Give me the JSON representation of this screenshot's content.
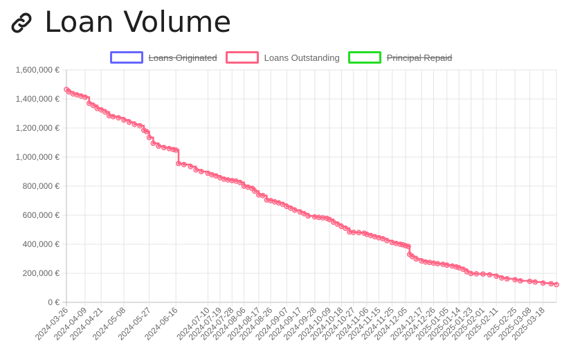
{
  "page": {
    "title": "Loan Volume",
    "title_icon": "link-icon"
  },
  "legend": {
    "items": [
      {
        "label": "Loans Originated",
        "color": "#6666ff",
        "hidden": true
      },
      {
        "label": "Loans Outstanding",
        "color": "#ff6384",
        "hidden": false
      },
      {
        "label": "Principal Repaid",
        "color": "#22dd22",
        "hidden": true
      }
    ]
  },
  "chart_data": {
    "type": "line",
    "y_ticks": [
      "0 €",
      "200,000 €",
      "400,000 €",
      "600,000 €",
      "800,000 €",
      "1,000,000 €",
      "1,200,000 €",
      "1,400,000 €",
      "1,600,000 €"
    ],
    "ylim": [
      0,
      1600000
    ],
    "x_tick_labels": [
      "2024-03-26",
      "2024-04-09",
      "2024-04-21",
      "2024-05-08",
      "2024-05-27",
      "2024-06-16",
      "2024-07-10",
      "2024-07-19",
      "2024-07-28",
      "2024-08-06",
      "2024-08-17",
      "2024-08-26",
      "2024-09-07",
      "2024-09-17",
      "2024-09-28",
      "2024-10-09",
      "2024-10-18",
      "2024-10-27",
      "2024-11-06",
      "2024-11-15",
      "2024-11-25",
      "2024-12-05",
      "2024-12-17",
      "2024-12-26",
      "2025-01-05",
      "2025-01-14",
      "2025-01-23",
      "2025-02-01",
      "2025-02-11",
      "2025-02-25",
      "2025-03-08",
      "2025-03-18"
    ],
    "grid": true,
    "legend_position": "top-center",
    "series": [
      {
        "name": "Loans Outstanding",
        "color": "#ff6384",
        "points": [
          [
            "2024-03-26",
            1465000
          ],
          [
            "2024-03-28",
            1448000
          ],
          [
            "2024-03-31",
            1435000
          ],
          [
            "2024-04-03",
            1428000
          ],
          [
            "2024-04-06",
            1420000
          ],
          [
            "2024-04-09",
            1412000
          ],
          [
            "2024-04-12",
            1370000
          ],
          [
            "2024-04-15",
            1355000
          ],
          [
            "2024-04-18",
            1335000
          ],
          [
            "2024-04-21",
            1325000
          ],
          [
            "2024-04-24",
            1310000
          ],
          [
            "2024-04-27",
            1285000
          ],
          [
            "2024-04-30",
            1278000
          ],
          [
            "2024-05-04",
            1270000
          ],
          [
            "2024-05-08",
            1255000
          ],
          [
            "2024-05-12",
            1240000
          ],
          [
            "2024-05-16",
            1225000
          ],
          [
            "2024-05-20",
            1215000
          ],
          [
            "2024-05-23",
            1185000
          ],
          [
            "2024-05-25",
            1175000
          ],
          [
            "2024-05-27",
            1135000
          ],
          [
            "2024-05-30",
            1095000
          ],
          [
            "2024-06-03",
            1075000
          ],
          [
            "2024-06-07",
            1065000
          ],
          [
            "2024-06-11",
            1058000
          ],
          [
            "2024-06-14",
            1052000
          ],
          [
            "2024-06-16",
            1048000
          ],
          [
            "2024-06-18",
            955000
          ],
          [
            "2024-06-22",
            948000
          ],
          [
            "2024-06-27",
            935000
          ],
          [
            "2024-07-01",
            912000
          ],
          [
            "2024-07-05",
            900000
          ],
          [
            "2024-07-10",
            888000
          ],
          [
            "2024-07-13",
            878000
          ],
          [
            "2024-07-16",
            870000
          ],
          [
            "2024-07-19",
            858000
          ],
          [
            "2024-07-22",
            848000
          ],
          [
            "2024-07-25",
            843000
          ],
          [
            "2024-07-28",
            838000
          ],
          [
            "2024-07-31",
            835000
          ],
          [
            "2024-08-03",
            825000
          ],
          [
            "2024-08-06",
            800000
          ],
          [
            "2024-08-09",
            793000
          ],
          [
            "2024-08-12",
            785000
          ],
          [
            "2024-08-14",
            765000
          ],
          [
            "2024-08-17",
            740000
          ],
          [
            "2024-08-20",
            735000
          ],
          [
            "2024-08-23",
            705000
          ],
          [
            "2024-08-26",
            700000
          ],
          [
            "2024-08-29",
            692000
          ],
          [
            "2024-09-01",
            685000
          ],
          [
            "2024-09-04",
            675000
          ],
          [
            "2024-09-07",
            660000
          ],
          [
            "2024-09-10",
            648000
          ],
          [
            "2024-09-13",
            635000
          ],
          [
            "2024-09-17",
            622000
          ],
          [
            "2024-09-20",
            610000
          ],
          [
            "2024-09-23",
            595000
          ],
          [
            "2024-09-28",
            588000
          ],
          [
            "2024-10-01",
            585000
          ],
          [
            "2024-10-04",
            582000
          ],
          [
            "2024-10-07",
            578000
          ],
          [
            "2024-10-09",
            570000
          ],
          [
            "2024-10-12",
            552000
          ],
          [
            "2024-10-15",
            538000
          ],
          [
            "2024-10-18",
            522000
          ],
          [
            "2024-10-21",
            510000
          ],
          [
            "2024-10-24",
            485000
          ],
          [
            "2024-10-27",
            482000
          ],
          [
            "2024-10-31",
            480000
          ],
          [
            "2024-11-04",
            476000
          ],
          [
            "2024-11-06",
            468000
          ],
          [
            "2024-11-09",
            460000
          ],
          [
            "2024-11-12",
            452000
          ],
          [
            "2024-11-15",
            445000
          ],
          [
            "2024-11-18",
            438000
          ],
          [
            "2024-11-21",
            425000
          ],
          [
            "2024-11-25",
            412000
          ],
          [
            "2024-11-28",
            405000
          ],
          [
            "2024-12-01",
            400000
          ],
          [
            "2024-12-03",
            396000
          ],
          [
            "2024-12-05",
            390000
          ],
          [
            "2024-12-07",
            385000
          ],
          [
            "2024-12-08",
            330000
          ],
          [
            "2024-12-10",
            315000
          ],
          [
            "2024-12-13",
            298000
          ],
          [
            "2024-12-17",
            285000
          ],
          [
            "2024-12-20",
            278000
          ],
          [
            "2024-12-23",
            275000
          ],
          [
            "2024-12-26",
            270000
          ],
          [
            "2024-12-29",
            266000
          ],
          [
            "2025-01-02",
            262000
          ],
          [
            "2025-01-05",
            256000
          ],
          [
            "2025-01-09",
            250000
          ],
          [
            "2025-01-12",
            244000
          ],
          [
            "2025-01-14",
            238000
          ],
          [
            "2025-01-17",
            228000
          ],
          [
            "2025-01-20",
            210000
          ],
          [
            "2025-01-23",
            198000
          ],
          [
            "2025-01-27",
            196000
          ],
          [
            "2025-02-01",
            195000
          ],
          [
            "2025-02-06",
            190000
          ],
          [
            "2025-02-11",
            180000
          ],
          [
            "2025-02-15",
            168000
          ],
          [
            "2025-02-19",
            162000
          ],
          [
            "2025-02-25",
            155000
          ],
          [
            "2025-03-01",
            148000
          ],
          [
            "2025-03-08",
            145000
          ],
          [
            "2025-03-12",
            140000
          ],
          [
            "2025-03-18",
            133000
          ],
          [
            "2025-03-24",
            128000
          ],
          [
            "2025-03-28",
            122000
          ]
        ]
      }
    ]
  }
}
